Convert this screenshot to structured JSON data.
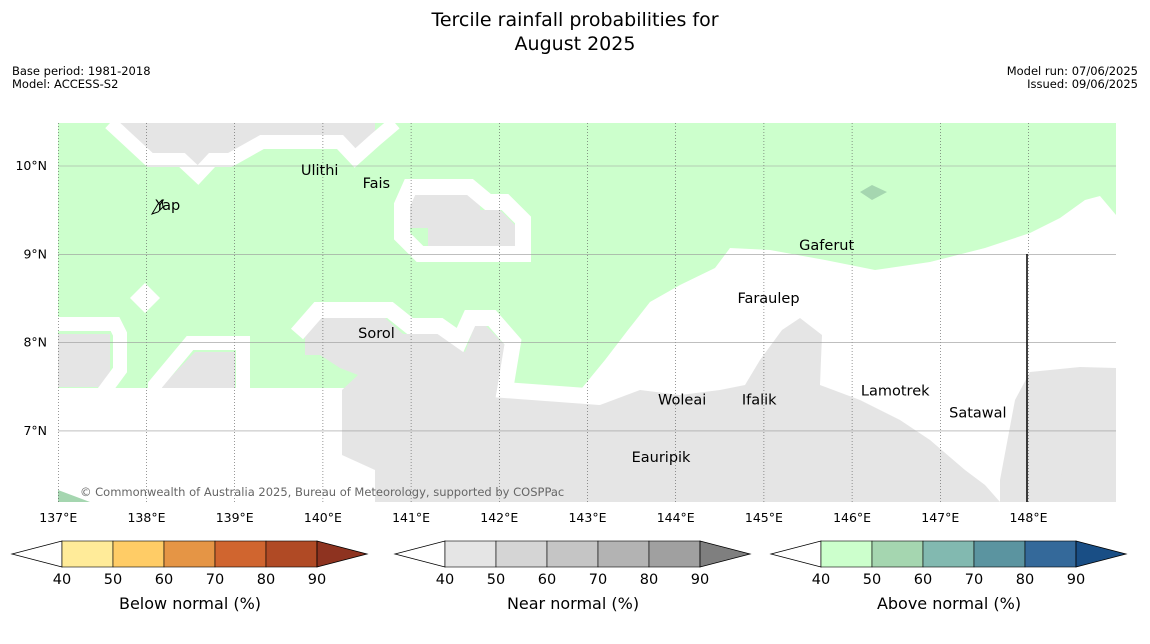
{
  "title_line1": "Tercile rainfall probabilities for",
  "title_line2": "August 2025",
  "base_period": "Base period: 1981-2018",
  "model": "Model: ACCESS-S2",
  "model_run": "Model run: 07/06/2025",
  "issued": "Issued: 09/06/2025",
  "copyright": "© Commonwealth of Australia 2025, Bureau of Meteorology, supported by COSPPac",
  "lon_ticks": [
    "137°E",
    "138°E",
    "139°E",
    "140°E",
    "141°E",
    "142°E",
    "143°E",
    "144°E",
    "145°E",
    "146°E",
    "147°E",
    "148°E"
  ],
  "lat_ticks": [
    "10°N",
    "9°N",
    "8°N",
    "7°N"
  ],
  "places": [
    {
      "name": "Ulithi",
      "lon": 139.75,
      "lat": 9.9
    },
    {
      "name": "Fais",
      "lon": 140.45,
      "lat": 9.75
    },
    {
      "name": "Yap",
      "lon": 138.1,
      "lat": 9.5
    },
    {
      "name": "Gaferut",
      "lon": 145.4,
      "lat": 9.05
    },
    {
      "name": "Faraulep",
      "lon": 144.7,
      "lat": 8.45
    },
    {
      "name": "Sorol",
      "lon": 140.4,
      "lat": 8.05
    },
    {
      "name": "Lamotrek",
      "lon": 146.1,
      "lat": 7.4
    },
    {
      "name": "Woleai",
      "lon": 143.8,
      "lat": 7.3
    },
    {
      "name": "Ifalik",
      "lon": 144.75,
      "lat": 7.3
    },
    {
      "name": "Satawal",
      "lon": 147.1,
      "lat": 7.15
    },
    {
      "name": "Eauripik",
      "lon": 143.5,
      "lat": 6.65
    }
  ],
  "colorbars": [
    {
      "label": "Below normal (%)",
      "ticks": [
        "40",
        "50",
        "60",
        "70",
        "80",
        "90"
      ],
      "colors": [
        "#ffffff",
        "#ffeb99",
        "#ffcc66",
        "#e59545",
        "#d0652f",
        "#b04a25",
        "#8e3320"
      ]
    },
    {
      "label": "Near normal (%)",
      "ticks": [
        "40",
        "50",
        "60",
        "70",
        "80",
        "90"
      ],
      "colors": [
        "#ffffff",
        "#e5e5e5",
        "#d5d5d5",
        "#c5c5c5",
        "#b3b3b3",
        "#a0a0a0",
        "#7f7f7f"
      ]
    },
    {
      "label": "Above normal (%)",
      "ticks": [
        "40",
        "50",
        "60",
        "70",
        "80",
        "90"
      ],
      "colors": [
        "#ffffff",
        "#ccffcc",
        "#a5d6b0",
        "#82b9b0",
        "#5b94a0",
        "#34699a",
        "#194e85"
      ]
    }
  ],
  "colors": {
    "above_40_50": "#ccffcc",
    "near_40_50": "#e5e5e5",
    "above_50_60": "#a5d6b0"
  }
}
